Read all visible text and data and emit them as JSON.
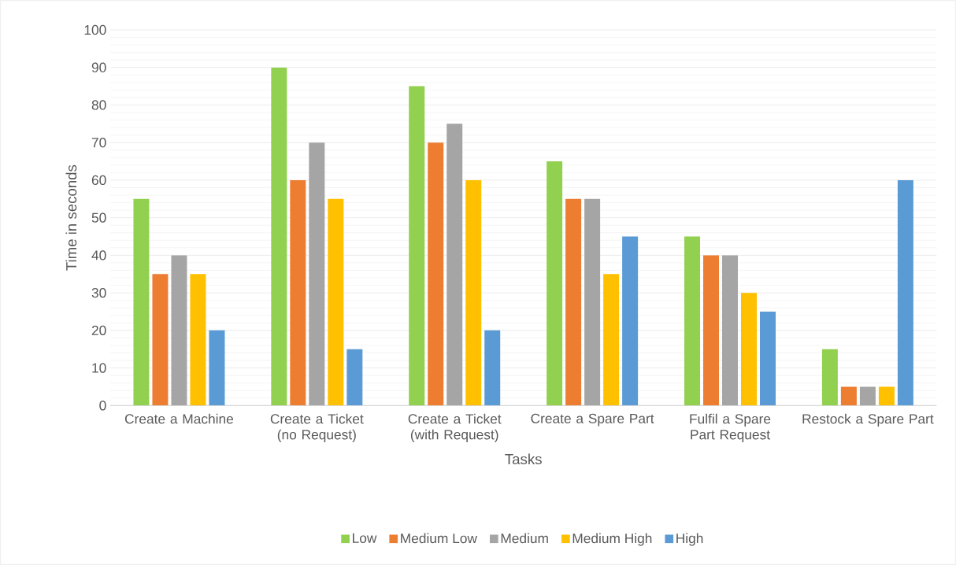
{
  "chart_data": {
    "type": "bar",
    "xlabel": "Tasks",
    "ylabel": "Time in seconds",
    "categories": [
      "Create a Machine",
      "Create a Ticket (no Request)",
      "Create a Ticket (with Request)",
      "Create a Spare Part",
      "Fulfil a Spare Part Request",
      "Restock a Spare Part"
    ],
    "series": [
      {
        "name": "Low",
        "color": "#92d050",
        "values": [
          55,
          90,
          85,
          65,
          45,
          15
        ]
      },
      {
        "name": "Medium Low",
        "color": "#ed7d31",
        "values": [
          35,
          60,
          70,
          55,
          40,
          5
        ]
      },
      {
        "name": "Medium",
        "color": "#a5a5a5",
        "values": [
          40,
          70,
          75,
          55,
          40,
          5
        ]
      },
      {
        "name": "Medium High",
        "color": "#ffc000",
        "values": [
          35,
          55,
          60,
          35,
          30,
          5
        ]
      },
      {
        "name": "High",
        "color": "#5b9bd5",
        "values": [
          20,
          15,
          20,
          45,
          25,
          60
        ]
      }
    ],
    "ylim": [
      0,
      100
    ],
    "yticks": [
      0,
      10,
      20,
      30,
      40,
      50,
      60,
      70,
      80,
      90,
      100
    ],
    "grid": "y",
    "legend": "bottom"
  }
}
